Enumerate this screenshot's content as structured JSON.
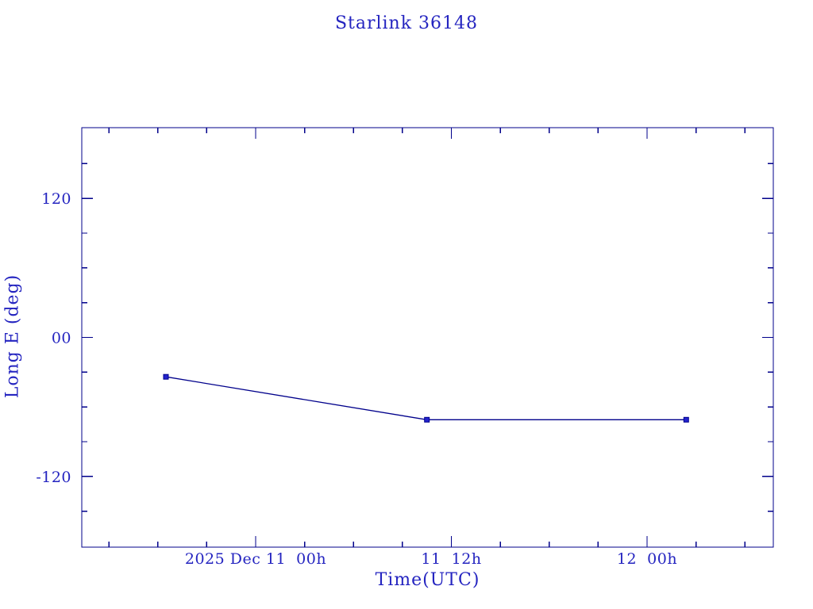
{
  "header": {
    "title": "Starlink 36148"
  },
  "colors": {
    "text": "#2424c0",
    "axis": "#00008b",
    "line": "#00008b",
    "marker": "#2323cd",
    "background": "#ffffff"
  },
  "chart_data": {
    "type": "line",
    "title": "Starlink 36148",
    "xlabel": "Time(UTC)",
    "ylabel": "Long E (deg)",
    "grid": false,
    "legend": "none",
    "x_axis_note": "hours are offsets from 2025-12-11 00:00 UTC",
    "xlim_hours": [
      -10.66,
      31.74
    ],
    "ylim": [
      -181,
      181
    ],
    "x_major_ticks": [
      {
        "hours": 0,
        "label": "2025 Dec 11  00h"
      },
      {
        "hours": 12,
        "label": "11  12h"
      },
      {
        "hours": 24,
        "label": "12  00h"
      }
    ],
    "x_minor_tick_hours": [
      -9,
      -6,
      -3,
      3,
      6,
      9,
      15,
      18,
      21,
      27,
      30
    ],
    "y_major_ticks": [
      {
        "value": 120,
        "label": "120"
      },
      {
        "value": 0,
        "label": "00"
      },
      {
        "value": -120,
        "label": "-120"
      }
    ],
    "y_minor_tick_values": [
      150,
      90,
      60,
      30,
      -30,
      -60,
      -90,
      -150
    ],
    "series": [
      {
        "name": "Long E",
        "marker": "square",
        "points": [
          {
            "time_utc": "2025-12-10 18:30",
            "hours": -5.5,
            "long_e_deg": -34
          },
          {
            "time_utc": "2025-12-11 10:30",
            "hours": 10.5,
            "long_e_deg": -71
          },
          {
            "time_utc": "2025-12-12 02:20",
            "hours": 26.4,
            "long_e_deg": -71
          }
        ]
      }
    ]
  }
}
